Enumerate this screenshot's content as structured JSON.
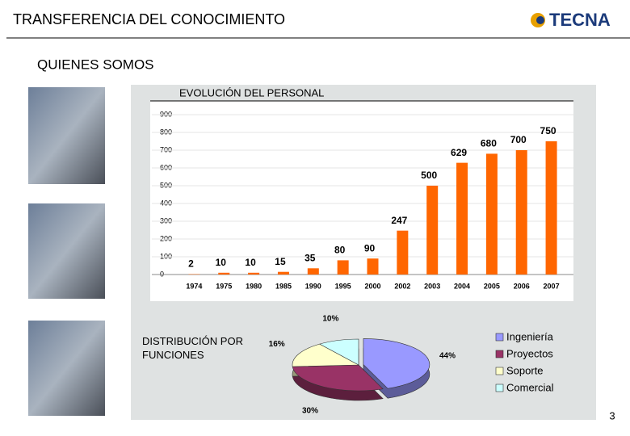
{
  "header": {
    "title": "TRANSFERENCIA DEL CONOCIMIENTO",
    "logo": "TECNA"
  },
  "section": "QUIENES SOMOS",
  "page_number": "3",
  "chart_data": [
    {
      "type": "bar",
      "title": "EVOLUCIÓN DEL PERSONAL",
      "categories": [
        "1974",
        "1975",
        "1980",
        "1985",
        "1990",
        "1995",
        "2000",
        "2002",
        "2003",
        "2004",
        "2005",
        "2006",
        "2007"
      ],
      "values": [
        2,
        10,
        10,
        15,
        35,
        80,
        90,
        247,
        500,
        629,
        680,
        700,
        750
      ],
      "color": "#ff6600",
      "ylim": [
        0,
        900
      ],
      "yticks": [
        0,
        100,
        200,
        300,
        400,
        500,
        600,
        700,
        800,
        900
      ],
      "grid": true
    },
    {
      "type": "pie",
      "title": "DISTRIBUCIÓN POR FUNCIONES",
      "series": [
        {
          "name": "Ingeniería",
          "color": "#9999ff",
          "values": [
            44
          ],
          "value_labels": [
            "44%"
          ]
        },
        {
          "name": "Proyectos",
          "color": "#993366",
          "values": [
            30
          ],
          "value_labels": [
            "30%"
          ]
        },
        {
          "name": "Soporte",
          "color": "#ffffcc",
          "values": [
            16
          ],
          "value_labels": [
            "16%"
          ]
        },
        {
          "name": "Comercial",
          "color": "#ccffff",
          "values": [
            10
          ],
          "value_labels": [
            "10%"
          ]
        }
      ],
      "legend": "right"
    }
  ]
}
